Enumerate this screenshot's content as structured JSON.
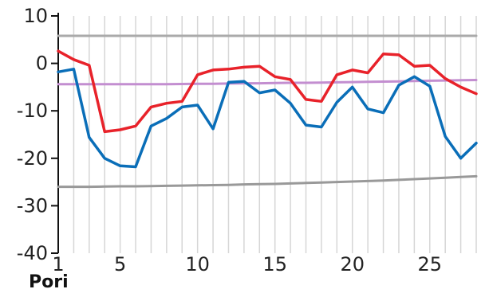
{
  "chart_data": {
    "type": "line",
    "title": "",
    "xlabel": "Pori",
    "ylabel": "",
    "x": [
      1,
      2,
      3,
      4,
      5,
      6,
      7,
      8,
      9,
      10,
      11,
      12,
      13,
      14,
      15,
      16,
      17,
      18,
      19,
      20,
      21,
      22,
      23,
      24,
      25,
      26,
      27,
      28
    ],
    "xlim": [
      1,
      28
    ],
    "ylim": [
      -40,
      10
    ],
    "x_ticks": [
      "1",
      "5",
      "10",
      "15",
      "20",
      "25"
    ],
    "x_tick_values": [
      1,
      5,
      10,
      15,
      20,
      25
    ],
    "y_ticks": [
      "10",
      "0",
      "-10",
      "-20",
      "-30",
      "-40"
    ],
    "y_tick_values": [
      10,
      0,
      -10,
      -20,
      -30,
      -40
    ],
    "grid": {
      "vertical": true,
      "horizontal": false
    },
    "legend": "none",
    "series": [
      {
        "key": "max",
        "color": "#e8222a",
        "values": [
          2.6,
          0.8,
          -0.4,
          -14.4,
          -14.0,
          -13.2,
          -9.2,
          -8.4,
          -8.0,
          -2.4,
          -1.4,
          -1.2,
          -0.8,
          -0.6,
          -2.8,
          -3.4,
          -7.6,
          -8.0,
          -2.4,
          -1.4,
          -2.0,
          2.0,
          1.8,
          -0.6,
          -0.4,
          -3.2,
          -5.0,
          -6.4
        ]
      },
      {
        "key": "min",
        "color": "#0a6eb8",
        "values": [
          -1.8,
          -1.2,
          -15.6,
          -20.0,
          -21.6,
          -21.8,
          -13.2,
          -11.6,
          -9.2,
          -8.8,
          -13.8,
          -4.0,
          -3.8,
          -6.2,
          -5.6,
          -8.4,
          -13.0,
          -13.4,
          -8.2,
          -5.0,
          -9.6,
          -10.4,
          -4.6,
          -2.8,
          -4.8,
          -15.4,
          -20.0,
          -16.8
        ]
      },
      {
        "key": "record-high",
        "color": "#aaaaaa",
        "values": [
          5.8,
          5.8,
          5.8,
          5.8,
          5.8,
          5.8,
          5.8,
          5.8,
          5.8,
          5.8,
          5.8,
          5.8,
          5.8,
          5.8,
          5.8,
          5.8,
          5.8,
          5.8,
          5.8,
          5.8,
          5.8,
          5.8,
          5.8,
          5.8,
          5.8,
          5.8,
          5.8,
          5.8
        ]
      },
      {
        "key": "average",
        "color": "#c38ed0",
        "values": [
          -4.4,
          -4.4,
          -4.4,
          -4.4,
          -4.4,
          -4.4,
          -4.4,
          -4.4,
          -4.35,
          -4.3,
          -4.3,
          -4.25,
          -4.2,
          -4.2,
          -4.15,
          -4.1,
          -4.1,
          -4.05,
          -4.0,
          -3.95,
          -3.9,
          -3.85,
          -3.8,
          -3.7,
          -3.65,
          -3.6,
          -3.55,
          -3.5
        ]
      },
      {
        "key": "record-low",
        "color": "#999999",
        "values": [
          -26.0,
          -26.0,
          -26.0,
          -25.95,
          -25.9,
          -25.9,
          -25.85,
          -25.8,
          -25.75,
          -25.7,
          -25.65,
          -25.6,
          -25.5,
          -25.45,
          -25.4,
          -25.3,
          -25.2,
          -25.1,
          -25.0,
          -24.9,
          -24.8,
          -24.7,
          -24.55,
          -24.4,
          -24.25,
          -24.1,
          -23.95,
          -23.8
        ]
      }
    ]
  }
}
